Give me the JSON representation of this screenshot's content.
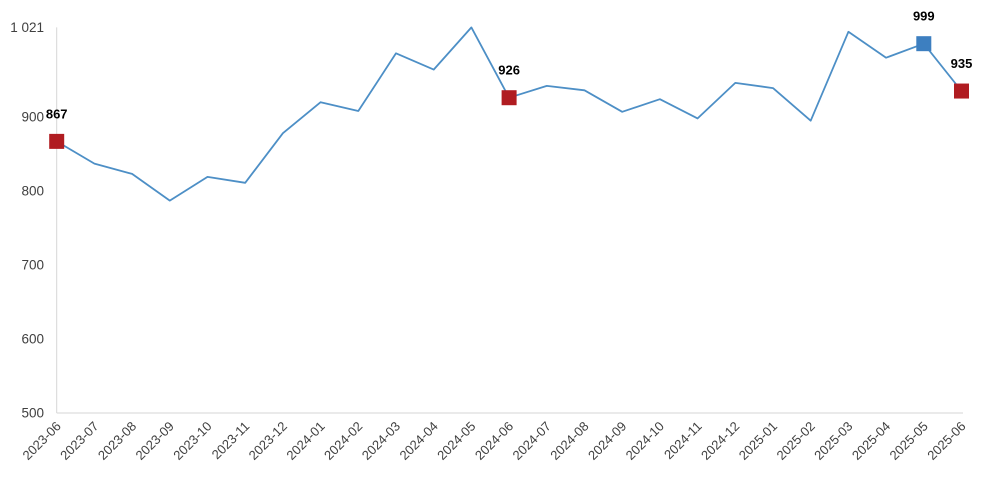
{
  "chart_data": {
    "type": "line",
    "title": "",
    "xlabel": "",
    "ylabel": "",
    "categories": [
      "2023-06",
      "2023-07",
      "2023-08",
      "2023-09",
      "2023-10",
      "2023-11",
      "2023-12",
      "2024-01",
      "2024-02",
      "2024-03",
      "2024-04",
      "2024-05",
      "2024-06",
      "2024-07",
      "2024-08",
      "2024-09",
      "2024-10",
      "2024-11",
      "2024-12",
      "2025-01",
      "2025-02",
      "2025-03",
      "2025-04",
      "2025-05",
      "2025-06"
    ],
    "values": [
      867,
      837,
      823,
      787,
      819,
      811,
      878,
      920,
      908,
      986,
      964,
      1021,
      926,
      942,
      936,
      907,
      924,
      898,
      946,
      939,
      895,
      1015,
      980,
      999,
      935
    ],
    "highlights": [
      {
        "index": 0,
        "label": "867",
        "color": "#b01c21"
      },
      {
        "index": 12,
        "label": "926",
        "color": "#b01c21"
      },
      {
        "index": 23,
        "label": "999",
        "color": "#3d7fc0"
      },
      {
        "index": 24,
        "label": "935",
        "color": "#b01c21"
      }
    ],
    "y_axis": {
      "min": 500,
      "max": 1021,
      "max_label": "1 021",
      "ticks": [
        {
          "value": 500,
          "label": "500"
        },
        {
          "value": 600,
          "label": "600"
        },
        {
          "value": 700,
          "label": "700"
        },
        {
          "value": 800,
          "label": "800"
        },
        {
          "value": 900,
          "label": "900"
        }
      ]
    },
    "ylim": [
      500,
      1021
    ],
    "grid": false,
    "legend": false,
    "colors": {
      "line": "#4d8fc6",
      "axis": "#d6d6d6",
      "axis_label": "#404040",
      "data_label": "#000000",
      "background": "#ffffff"
    }
  }
}
